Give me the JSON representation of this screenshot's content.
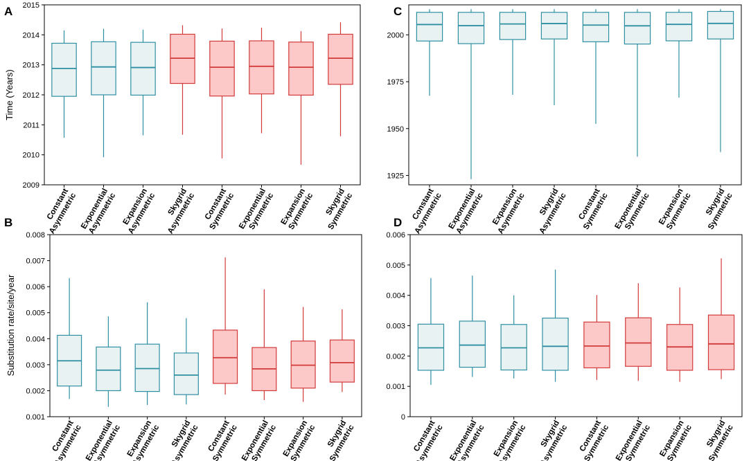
{
  "figure": {
    "colors": {
      "asym_stroke": "#2e8fa3",
      "asym_fill": "#e8f2f3",
      "sym_stroke": "#d23a3a",
      "sym_fill": "#fdc8c8"
    }
  },
  "chart_data": [
    {
      "id": "A",
      "label": "A",
      "type": "boxplot",
      "title": "",
      "xlabel": "",
      "ylabel": "Time (Years)",
      "ylim": [
        2009,
        2015
      ],
      "yticks": [
        2009,
        2010,
        2011,
        2012,
        2013,
        2014,
        2015
      ],
      "ytick_labels": [
        "2009",
        "2010",
        "2011",
        "2012",
        "2013",
        "2014",
        "2015"
      ],
      "grid": false,
      "categories": [
        {
          "line1": "Constant",
          "line2": "Asymmetric",
          "group": "asym"
        },
        {
          "line1": "Exponential",
          "line2": "Asymmetric",
          "group": "asym"
        },
        {
          "line1": "Expansion",
          "line2": "Asymmetric",
          "group": "asym"
        },
        {
          "line1": "Skygrid",
          "line2": "Asymmetric",
          "group": "sym"
        },
        {
          "line1": "Constant",
          "line2": "Symmetric",
          "group": "sym"
        },
        {
          "line1": "Exponential",
          "line2": "Symmetric",
          "group": "sym"
        },
        {
          "line1": "Expansion",
          "line2": "Symmetric",
          "group": "sym"
        },
        {
          "line1": "Skygrid",
          "line2": "Symmetric",
          "group": "sym"
        }
      ],
      "boxes": [
        {
          "min": 2010.57,
          "q1": 2011.95,
          "median": 2012.88,
          "q3": 2013.72,
          "max": 2014.15
        },
        {
          "min": 2009.92,
          "q1": 2012.0,
          "median": 2012.93,
          "q3": 2013.77,
          "max": 2014.2
        },
        {
          "min": 2010.65,
          "q1": 2011.99,
          "median": 2012.91,
          "q3": 2013.75,
          "max": 2014.17
        },
        {
          "min": 2010.67,
          "q1": 2012.38,
          "median": 2013.22,
          "q3": 2014.02,
          "max": 2014.32
        },
        {
          "min": 2009.88,
          "q1": 2011.96,
          "median": 2012.92,
          "q3": 2013.79,
          "max": 2014.21
        },
        {
          "min": 2010.72,
          "q1": 2012.03,
          "median": 2012.95,
          "q3": 2013.8,
          "max": 2014.24
        },
        {
          "min": 2009.67,
          "q1": 2011.99,
          "median": 2012.92,
          "q3": 2013.76,
          "max": 2014.12
        },
        {
          "min": 2010.62,
          "q1": 2012.35,
          "median": 2013.22,
          "q3": 2014.02,
          "max": 2014.42
        }
      ]
    },
    {
      "id": "C",
      "label": "C",
      "type": "boxplot",
      "title": "",
      "xlabel": "",
      "ylabel": "",
      "ylim": [
        1920,
        2016
      ],
      "yticks": [
        1925,
        1950,
        1975,
        2000
      ],
      "ytick_labels": [
        "1925",
        "1950",
        "1975",
        "2000"
      ],
      "grid": false,
      "categories": [
        {
          "line1": "Constant",
          "line2": "Asymmetric",
          "group": "asym"
        },
        {
          "line1": "Exponential",
          "line2": "Asymmetric",
          "group": "asym"
        },
        {
          "line1": "Expansion",
          "line2": "Asymmetric",
          "group": "asym"
        },
        {
          "line1": "Skygrid",
          "line2": "Asymmetric",
          "group": "asym"
        },
        {
          "line1": "Constant",
          "line2": "Symmetric",
          "group": "asym"
        },
        {
          "line1": "Exponential",
          "line2": "Symmetric",
          "group": "asym"
        },
        {
          "line1": "Expansion",
          "line2": "Symmetric",
          "group": "asym"
        },
        {
          "line1": "Skygrid",
          "line2": "Symmetric",
          "group": "asym"
        }
      ],
      "boxes": [
        {
          "min": 1967.5,
          "q1": 1996.7,
          "median": 2005.5,
          "q3": 2012.0,
          "max": 2013.7
        },
        {
          "min": 1923.0,
          "q1": 1995.3,
          "median": 2004.9,
          "q3": 2012.0,
          "max": 2013.7
        },
        {
          "min": 1968.0,
          "q1": 1997.5,
          "median": 2005.8,
          "q3": 2012.0,
          "max": 2013.7
        },
        {
          "min": 1962.5,
          "q1": 1997.8,
          "median": 2006.0,
          "q3": 2012.0,
          "max": 2013.7
        },
        {
          "min": 1952.5,
          "q1": 1996.3,
          "median": 2005.2,
          "q3": 2012.0,
          "max": 2013.7
        },
        {
          "min": 1935.0,
          "q1": 1995.1,
          "median": 2004.8,
          "q3": 2012.0,
          "max": 2013.7
        },
        {
          "min": 1966.5,
          "q1": 1996.8,
          "median": 2005.6,
          "q3": 2012.0,
          "max": 2013.7
        },
        {
          "min": 1937.5,
          "q1": 1997.8,
          "median": 2006.1,
          "q3": 2012.5,
          "max": 2013.7
        }
      ]
    },
    {
      "id": "B",
      "label": "B",
      "type": "boxplot",
      "title": "",
      "xlabel": "",
      "ylabel": "Substitution rate/site/year",
      "ylim": [
        0.001,
        0.008
      ],
      "yticks": [
        0.001,
        0.002,
        0.003,
        0.004,
        0.005,
        0.006,
        0.007,
        0.008
      ],
      "ytick_labels": [
        "0.001",
        "0.002",
        "0.003",
        "0.004",
        "0.005",
        "0.006",
        "0.007",
        "0.008"
      ],
      "grid": false,
      "categories": [
        {
          "line1": "Constant",
          "line2": "Asymmetric",
          "group": "asym"
        },
        {
          "line1": "Exponential",
          "line2": "Asymmetric",
          "group": "asym"
        },
        {
          "line1": "Expansion",
          "line2": "Asymmetric",
          "group": "asym"
        },
        {
          "line1": "Skygrid",
          "line2": "Asymmetric",
          "group": "asym"
        },
        {
          "line1": "Constant",
          "line2": "Symmetric",
          "group": "sym"
        },
        {
          "line1": "Exponential",
          "line2": "Symmetric",
          "group": "sym"
        },
        {
          "line1": "Expansion",
          "line2": "Symmetric",
          "group": "sym"
        },
        {
          "line1": "Skygrid",
          "line2": "Symmetric",
          "group": "sym"
        }
      ],
      "boxes": [
        {
          "min": 0.00168,
          "q1": 0.00218,
          "median": 0.00315,
          "q3": 0.00413,
          "max": 0.00633
        },
        {
          "min": 0.00138,
          "q1": 0.002,
          "median": 0.00279,
          "q3": 0.00368,
          "max": 0.00486
        },
        {
          "min": 0.00145,
          "q1": 0.00197,
          "median": 0.00285,
          "q3": 0.00379,
          "max": 0.0054
        },
        {
          "min": 0.00147,
          "q1": 0.00185,
          "median": 0.0026,
          "q3": 0.00345,
          "max": 0.00479
        },
        {
          "min": 0.00185,
          "q1": 0.00228,
          "median": 0.00327,
          "q3": 0.00433,
          "max": 0.00713
        },
        {
          "min": 0.00164,
          "q1": 0.002,
          "median": 0.00284,
          "q3": 0.00366,
          "max": 0.0059
        },
        {
          "min": 0.00157,
          "q1": 0.0021,
          "median": 0.00298,
          "q3": 0.00391,
          "max": 0.00522
        },
        {
          "min": 0.00195,
          "q1": 0.00233,
          "median": 0.00308,
          "q3": 0.00395,
          "max": 0.00513
        }
      ]
    },
    {
      "id": "D",
      "label": "D",
      "type": "boxplot",
      "title": "",
      "xlabel": "",
      "ylabel": "",
      "ylim": [
        0,
        0.006
      ],
      "yticks": [
        0,
        0.001,
        0.002,
        0.003,
        0.004,
        0.005,
        0.006
      ],
      "ytick_labels": [
        "0",
        "0.001",
        "0.002",
        "0.003",
        "0.004",
        "0.005",
        "0.006"
      ],
      "grid": false,
      "categories": [
        {
          "line1": "Constant",
          "line2": "Asymmetric",
          "group": "asym"
        },
        {
          "line1": "Exponential",
          "line2": "Asymmetric",
          "group": "asym"
        },
        {
          "line1": "Expansion",
          "line2": "Asymmetric",
          "group": "asym"
        },
        {
          "line1": "Skygrid",
          "line2": "Asymmetric",
          "group": "asym"
        },
        {
          "line1": "Constant",
          "line2": "Symmetric",
          "group": "sym"
        },
        {
          "line1": "Exponential",
          "line2": "Symmetric",
          "group": "sym"
        },
        {
          "line1": "Expansion",
          "line2": "Symmetric",
          "group": "sym"
        },
        {
          "line1": "Skygrid",
          "line2": "Symmetric",
          "group": "sym"
        }
      ],
      "boxes": [
        {
          "min": 0.00105,
          "q1": 0.00153,
          "median": 0.00227,
          "q3": 0.00305,
          "max": 0.00457
        },
        {
          "min": 0.00131,
          "q1": 0.00163,
          "median": 0.00236,
          "q3": 0.00315,
          "max": 0.00465
        },
        {
          "min": 0.00126,
          "q1": 0.00154,
          "median": 0.00227,
          "q3": 0.00304,
          "max": 0.004
        },
        {
          "min": 0.00115,
          "q1": 0.00153,
          "median": 0.00232,
          "q3": 0.00325,
          "max": 0.00485
        },
        {
          "min": 0.00121,
          "q1": 0.00161,
          "median": 0.00233,
          "q3": 0.00312,
          "max": 0.00401
        },
        {
          "min": 0.00118,
          "q1": 0.00166,
          "median": 0.00243,
          "q3": 0.00326,
          "max": 0.0044
        },
        {
          "min": 0.00115,
          "q1": 0.00153,
          "median": 0.0023,
          "q3": 0.00304,
          "max": 0.00426
        },
        {
          "min": 0.00124,
          "q1": 0.00155,
          "median": 0.0024,
          "q3": 0.00335,
          "max": 0.00522
        }
      ]
    }
  ]
}
